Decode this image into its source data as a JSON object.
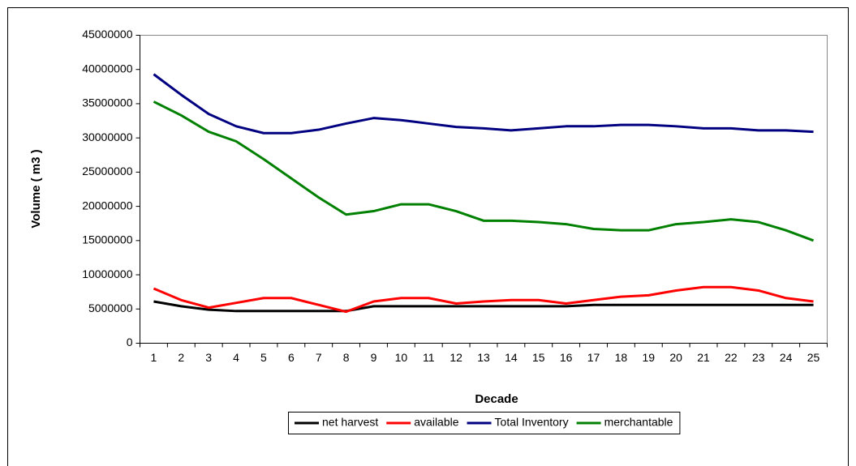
{
  "chart_data": {
    "type": "line",
    "x_label": "Decade",
    "y_label": "Volume ( m3 )",
    "categories": [
      "1",
      "2",
      "3",
      "4",
      "5",
      "6",
      "7",
      "8",
      "9",
      "10",
      "11",
      "12",
      "13",
      "14",
      "15",
      "16",
      "17",
      "18",
      "19",
      "20",
      "21",
      "22",
      "23",
      "24",
      "25"
    ],
    "ylim": [
      0,
      45000000
    ],
    "yticks": [
      0,
      5000000,
      10000000,
      15000000,
      20000000,
      25000000,
      30000000,
      35000000,
      40000000,
      45000000
    ],
    "legend": "bottom",
    "series": [
      {
        "name": "net harvest",
        "color": "#000000",
        "values": [
          6100000,
          5400000,
          4900000,
          4700000,
          4700000,
          4700000,
          4700000,
          4700000,
          5400000,
          5400000,
          5400000,
          5400000,
          5400000,
          5400000,
          5400000,
          5400000,
          5600000,
          5600000,
          5600000,
          5600000,
          5600000,
          5600000,
          5600000,
          5600000,
          5600000
        ]
      },
      {
        "name": "available",
        "color": "#ff0000",
        "values": [
          8000000,
          6300000,
          5200000,
          5900000,
          6600000,
          6600000,
          5600000,
          4600000,
          6100000,
          6600000,
          6600000,
          5800000,
          6100000,
          6300000,
          6300000,
          5800000,
          6300000,
          6800000,
          7000000,
          7700000,
          8200000,
          8200000,
          7700000,
          6600000,
          6100000
        ]
      },
      {
        "name": "Total Inventory",
        "color": "#000080",
        "values": [
          39300000,
          36300000,
          33500000,
          31700000,
          30700000,
          30700000,
          31200000,
          32100000,
          32900000,
          32600000,
          32100000,
          31600000,
          31400000,
          31100000,
          31400000,
          31700000,
          31700000,
          31900000,
          31900000,
          31700000,
          31400000,
          31400000,
          31100000,
          31100000,
          30900000
        ]
      },
      {
        "name": "merchantable",
        "color": "#008000",
        "values": [
          35300000,
          33300000,
          30900000,
          29500000,
          26900000,
          24100000,
          21300000,
          18800000,
          19300000,
          20300000,
          20300000,
          19300000,
          17900000,
          17900000,
          17700000,
          17400000,
          16700000,
          16500000,
          16500000,
          17400000,
          17700000,
          18100000,
          17700000,
          16500000,
          15000000
        ]
      }
    ]
  }
}
